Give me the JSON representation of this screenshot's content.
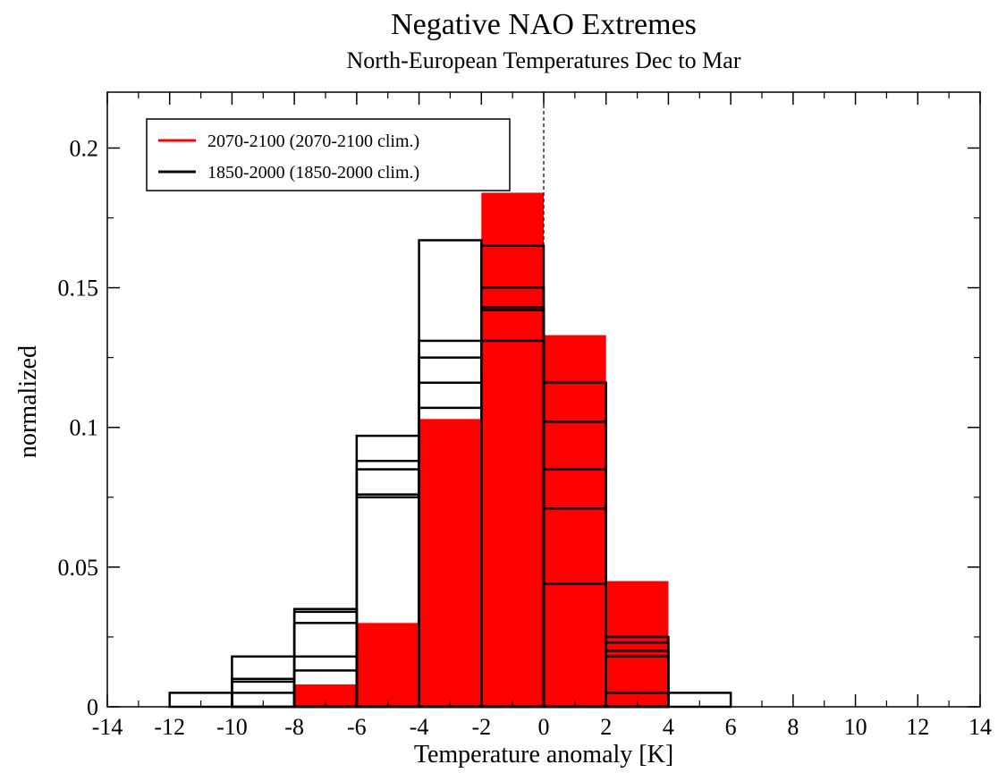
{
  "chart_data": {
    "type": "bar",
    "title": "Negative NAO Extremes",
    "subtitle": "North-European Temperatures Dec to Mar",
    "xlabel": "Temperature anomaly [K]",
    "ylabel": "normalized",
    "xlim": [
      -14,
      14
    ],
    "ylim": [
      0,
      0.22
    ],
    "x_ticks": [
      -14,
      -12,
      -10,
      -8,
      -6,
      -4,
      -2,
      0,
      2,
      4,
      6,
      8,
      10,
      12,
      14
    ],
    "y_ticks": [
      0,
      0.05,
      0.1,
      0.15,
      0.2
    ],
    "y_tick_labels": [
      "0",
      "0.05",
      "0.1",
      "0.15",
      "0.2"
    ],
    "bin_edges": [
      -14,
      -12,
      -10,
      -8,
      -6,
      -4,
      -2,
      0,
      2,
      4,
      6,
      8,
      10,
      12,
      14
    ],
    "reference_line_x": 0,
    "grid": false,
    "legend_position": "top-left",
    "series": [
      {
        "name": "2070-2100 (2070-2100 clim.)",
        "color": "#ff0000",
        "style": "filled",
        "values": [
          0,
          0,
          0,
          0.008,
          0.03,
          0.103,
          0.184,
          0.133,
          0.045,
          0,
          0,
          0,
          0,
          0
        ]
      },
      {
        "name": "1850-2000 (1850-2000 clim.)",
        "color": "#000000",
        "style": "outline",
        "members": [
          [
            0,
            0.005,
            0.018,
            0.035,
            0.097,
            0.167,
            0.165,
            0.116,
            0.025,
            0.005,
            0,
            0,
            0,
            0
          ],
          [
            0,
            0,
            0.01,
            0.034,
            0.088,
            0.131,
            0.15,
            0.102,
            0.023,
            0,
            0,
            0,
            0,
            0
          ],
          [
            0,
            0,
            0.009,
            0.03,
            0.085,
            0.125,
            0.143,
            0.085,
            0.02,
            0,
            0,
            0,
            0,
            0
          ],
          [
            0,
            0,
            0.005,
            0.018,
            0.076,
            0.116,
            0.142,
            0.071,
            0.018,
            0,
            0,
            0,
            0,
            0
          ],
          [
            0,
            0,
            0,
            0.013,
            0.075,
            0.107,
            0.131,
            0.044,
            0.005,
            0,
            0,
            0,
            0,
            0
          ]
        ]
      }
    ]
  }
}
